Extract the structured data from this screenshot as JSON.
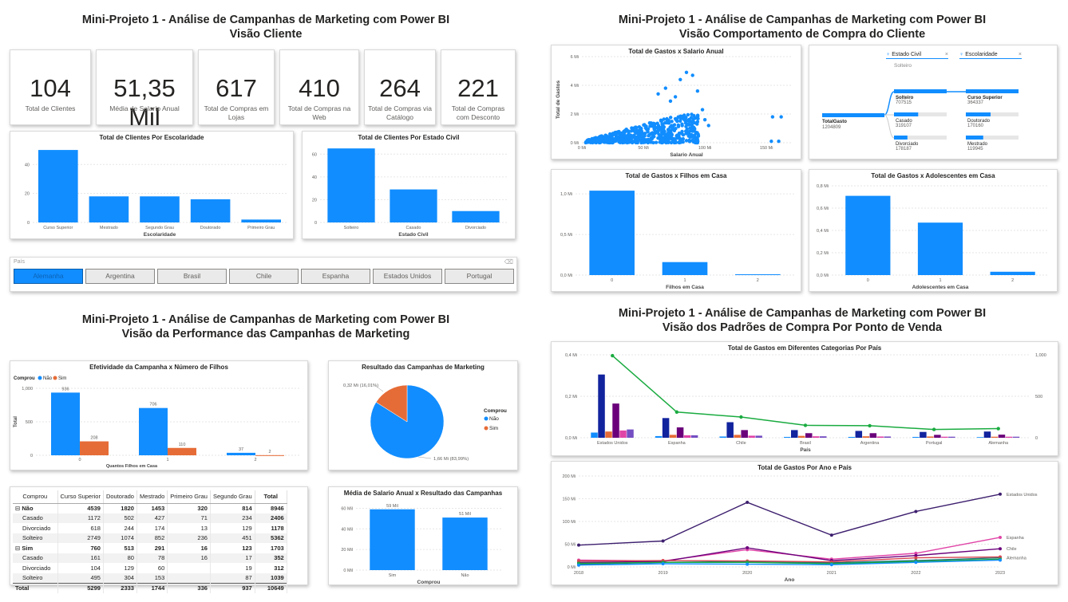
{
  "q1": {
    "title1": "Mini-Projeto 1 - Análise de Campanhas de Marketing com Power BI",
    "title2": "Visão Cliente",
    "kpis": [
      {
        "value": "104",
        "label": "Total de Clientes"
      },
      {
        "value": "51,35 Mil",
        "label": "Média de Salario Anual"
      },
      {
        "value": "617",
        "label": "Total de Compras em Lojas"
      },
      {
        "value": "410",
        "label": "Total de Compras na Web"
      },
      {
        "value": "264",
        "label": "Total de Compras via Catálogo"
      },
      {
        "value": "221",
        "label": "Total de Compras com Desconto"
      }
    ],
    "slicer": {
      "label": "País",
      "options": [
        "Alemanha",
        "Argentina",
        "Brasil",
        "Chile",
        "Espanha",
        "Estados Unidos",
        "Portugal"
      ],
      "selected": "Alemanha"
    }
  },
  "q2": {
    "title1": "Mini-Projeto 1 - Análise de Campanhas de Marketing com Power BI",
    "title2": "Visão Comportamento de Compra do Cliente",
    "tree": {
      "filter1": "Estado Civil",
      "filter2": "Escolaridade",
      "filter1_value": "Solteiro",
      "root_label": "TotalGasto",
      "root_value": "1204809",
      "level1": [
        {
          "label": "Solteiro",
          "value": "707515"
        },
        {
          "label": "Casado",
          "value": "319107"
        },
        {
          "label": "Divorciado",
          "value": "178187"
        }
      ],
      "level2": [
        {
          "label": "Curso Superior",
          "value": "364337"
        },
        {
          "label": "Doutorado",
          "value": "170160"
        },
        {
          "label": "Mestrado",
          "value": "119945"
        }
      ]
    }
  },
  "q3": {
    "title1": "Mini-Projeto 1 - Análise de Campanhas de Marketing com Power BI",
    "title2": "Visão da Performance das Campanhas de Marketing",
    "matrix": {
      "headers": [
        "Comprou",
        "Curso Superior",
        "Doutorado",
        "Mestrado",
        "Primeiro Grau",
        "Segundo Grau",
        "Total"
      ],
      "rows": [
        {
          "type": "grp",
          "cells": [
            "Não",
            "4539",
            "1820",
            "1453",
            "320",
            "814",
            "8946"
          ]
        },
        {
          "type": "sub",
          "cells": [
            "Casado",
            "1172",
            "502",
            "427",
            "71",
            "234",
            "2406"
          ]
        },
        {
          "type": "sub",
          "cells": [
            "Divorciado",
            "618",
            "244",
            "174",
            "13",
            "129",
            "1178"
          ]
        },
        {
          "type": "sub",
          "cells": [
            "Solteiro",
            "2749",
            "1074",
            "852",
            "236",
            "451",
            "5362"
          ]
        },
        {
          "type": "grp",
          "cells": [
            "Sim",
            "760",
            "513",
            "291",
            "16",
            "123",
            "1703"
          ]
        },
        {
          "type": "sub",
          "cells": [
            "Casado",
            "161",
            "80",
            "78",
            "16",
            "17",
            "352"
          ]
        },
        {
          "type": "sub",
          "cells": [
            "Divorciado",
            "104",
            "129",
            "60",
            "",
            "19",
            "312"
          ]
        },
        {
          "type": "sub",
          "cells": [
            "Solteiro",
            "495",
            "304",
            "153",
            "",
            "87",
            "1039"
          ]
        },
        {
          "type": "tot",
          "cells": [
            "Total",
            "5299",
            "2333",
            "1744",
            "336",
            "937",
            "10649"
          ]
        }
      ]
    }
  },
  "q4": {
    "title1": "Mini-Projeto 1 - Análise de Campanhas de Marketing com Power BI",
    "title2": "Visão dos Padrões de Compra Por Ponto de Venda"
  },
  "colors": {
    "blue": "#118dff",
    "orange": "#e66c37",
    "purple": "#6b007b",
    "darkblue": "#12239e",
    "pink": "#e044a7",
    "green": "#1aab40",
    "navy": "#2f1b5e",
    "teal": "#197278"
  },
  "chart_data": [
    {
      "id": "escolaridade",
      "type": "bar",
      "title": "Total de Clientes Por Escolaridade",
      "xlabel": "Escolaridade",
      "categories": [
        "Curso Superior",
        "Mestrado",
        "Segundo Grau",
        "Doutorado",
        "Primeiro Grau"
      ],
      "values": [
        50,
        18,
        18,
        16,
        2
      ],
      "ylim": [
        0,
        55
      ],
      "yticks": [
        0,
        20,
        40
      ]
    },
    {
      "id": "estadocivil",
      "type": "bar",
      "title": "Total de Clientes Por Estado Civil",
      "xlabel": "Estado Civil",
      "categories": [
        "Solteiro",
        "Casado",
        "Divorciado"
      ],
      "values": [
        65,
        29,
        10
      ],
      "ylim": [
        0,
        70
      ],
      "yticks": [
        0,
        20,
        40,
        60
      ]
    },
    {
      "id": "scatter",
      "type": "scatter",
      "title": "Total de Gastos x Salario Anual",
      "xlabel": "Salario Anual",
      "ylabel": "Total de Gastos",
      "xticks": [
        "0 Mi",
        "50 Mi",
        "100 Mi",
        "150 Mi"
      ],
      "yticks": [
        "0 Mi",
        "2 Mi",
        "4 Mi",
        "6 Mi"
      ],
      "xlim": [
        0,
        170
      ],
      "ylim": [
        0,
        6
      ]
    },
    {
      "id": "filhos",
      "type": "bar",
      "title": "Total de Gastos x Filhos em Casa",
      "xlabel": "Filhos em Casa",
      "categories": [
        "0",
        "1",
        "2"
      ],
      "values": [
        1.04,
        0.16,
        0.01
      ],
      "ylim": [
        0,
        1.1
      ],
      "yticks": [
        0,
        0.5,
        1.0
      ],
      "ytick_labels": [
        "0,0 Mi",
        "0,5 Mi",
        "1,0 Mi"
      ]
    },
    {
      "id": "adolescentes",
      "type": "bar",
      "title": "Total de Gastos x Adolescentes em Casa",
      "xlabel": "Adolescentes em Casa",
      "categories": [
        "0",
        "1",
        "2"
      ],
      "values": [
        0.71,
        0.47,
        0.03
      ],
      "ylim": [
        0,
        0.8
      ],
      "yticks": [
        0,
        0.2,
        0.4,
        0.6,
        0.8
      ],
      "ytick_labels": [
        "0,0 Mi",
        "0,2 Mi",
        "0,4 Mi",
        "0,6 Mi",
        "0,8 Mi"
      ]
    },
    {
      "id": "efetividade",
      "type": "bar",
      "title": "Efetividade da Campanha x Número de Filhos",
      "xlabel": "Quantos Filhos em Casa",
      "ylabel": "Total",
      "legend_title": "Comprou",
      "categories": [
        "0",
        "1",
        "2"
      ],
      "series": [
        {
          "name": "Não",
          "values": [
            936,
            706,
            37
          ],
          "labels": [
            "936",
            "706",
            "37"
          ]
        },
        {
          "name": "Sim",
          "values": [
            208,
            110,
            2
          ],
          "labels": [
            "208",
            "110",
            "2"
          ]
        }
      ],
      "ylim": [
        0,
        1000
      ],
      "yticks": [
        0,
        500,
        1000
      ],
      "ytick_labels": [
        "0",
        "500",
        "1,000"
      ]
    },
    {
      "id": "pie",
      "type": "pie",
      "title": "Resultado das Campanhas de Marketing",
      "legend_title": "Comprou",
      "slices": [
        {
          "name": "Não",
          "value": 83.99,
          "label": "1,66 Mi (83,99%)"
        },
        {
          "name": "Sim",
          "value": 16.01,
          "label": "0,32 Mi (16,01%)"
        }
      ]
    },
    {
      "id": "media",
      "type": "bar",
      "title": "Média de Salario Anual x Resultado das Campanhas",
      "xlabel": "Comprou",
      "categories": [
        "Sim",
        "Não"
      ],
      "values": [
        59,
        51
      ],
      "labels": [
        "59 Mil",
        "51 Mil"
      ],
      "ylim": [
        0,
        65
      ],
      "yticks": [
        0,
        20,
        40,
        60
      ],
      "ytick_labels": [
        "0 Mil",
        "20 Mil",
        "40 Mil",
        "60 Mil"
      ]
    },
    {
      "id": "categorias",
      "type": "bar",
      "title": "Total de Gastos em Diferentes Categorias Por País",
      "xlabel": "País",
      "categories": [
        "Estados Unidos",
        "Espanha",
        "Chile",
        "Brasil",
        "Argentina",
        "Portugal",
        "Alemanha"
      ],
      "series": [
        {
          "values": [
            0.025,
            0.008,
            0.006,
            0.004,
            0.004,
            0.004,
            0.003
          ]
        },
        {
          "values": [
            0.305,
            0.095,
            0.075,
            0.037,
            0.033,
            0.028,
            0.03
          ]
        },
        {
          "values": [
            0.03,
            0.014,
            0.014,
            0.009,
            0.007,
            0.006,
            0.005
          ]
        },
        {
          "values": [
            0.165,
            0.05,
            0.037,
            0.022,
            0.022,
            0.014,
            0.015
          ]
        },
        {
          "values": [
            0.035,
            0.012,
            0.01,
            0.007,
            0.006,
            0.005,
            0.005
          ]
        },
        {
          "values": [
            0.04,
            0.012,
            0.01,
            0.007,
            0.006,
            0.005,
            0.005
          ]
        }
      ],
      "line": {
        "values": [
          990,
          310,
          250,
          150,
          145,
          100,
          110
        ]
      },
      "ylim": [
        0,
        0.4
      ],
      "y2lim": [
        0,
        1000
      ],
      "yticks": [
        "0,0 Mi",
        "0,2 Mi",
        "0,4 Mi"
      ],
      "y2ticks": [
        "0",
        "500",
        "1,000"
      ]
    },
    {
      "id": "anopais",
      "type": "line",
      "title": "Total de Gastos Por Ano e País",
      "xlabel": "Ano",
      "x": [
        "2018",
        "2019",
        "2020",
        "2021",
        "2022",
        "2023"
      ],
      "ylim": [
        0,
        200
      ],
      "yticks": [
        "0 Mi",
        "50 Mi",
        "100 Mi",
        "150 Mi",
        "200 Mi"
      ],
      "series": [
        {
          "name": "Estados Unidos",
          "values": [
            48,
            57,
            142,
            70,
            122,
            160
          ]
        },
        {
          "name": "Espanha",
          "values": [
            15,
            13,
            38,
            17,
            30,
            65
          ]
        },
        {
          "name": "Chile",
          "values": [
            10,
            12,
            42,
            14,
            25,
            40
          ]
        },
        {
          "name": "Alemanha",
          "values": [
            6,
            10,
            12,
            9,
            14,
            20
          ]
        },
        {
          "values": [
            13,
            14,
            13,
            11,
            20,
            22
          ]
        },
        {
          "values": [
            8,
            10,
            10,
            7,
            12,
            17
          ]
        },
        {
          "values": [
            4,
            7,
            6,
            5,
            10,
            15
          ]
        }
      ]
    }
  ]
}
